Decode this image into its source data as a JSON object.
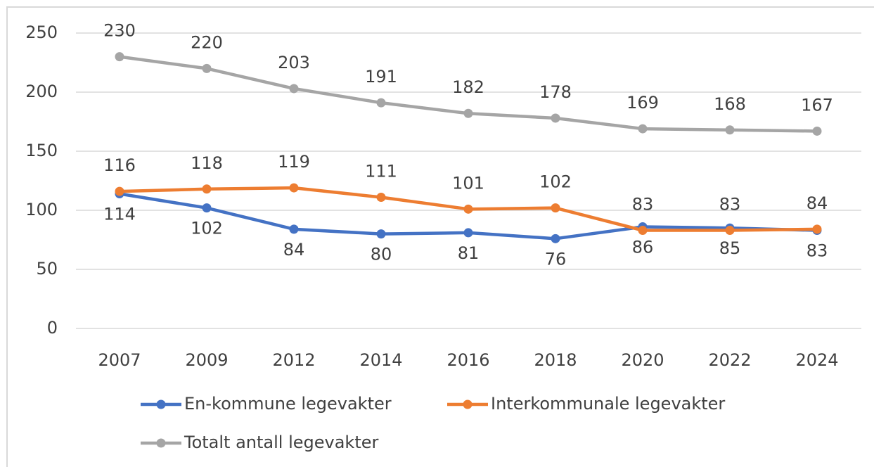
{
  "chart_data": {
    "type": "line",
    "categories": [
      "2007",
      "2009",
      "2012",
      "2014",
      "2016",
      "2018",
      "2020",
      "2022",
      "2024"
    ],
    "series": [
      {
        "name": "En-kommune legevakter",
        "color": "#4472c4",
        "values": [
          114,
          102,
          84,
          80,
          81,
          76,
          86,
          85,
          83
        ],
        "label_position": "below"
      },
      {
        "name": "Interkommunale legevakter",
        "color": "#ed7d31",
        "values": [
          116,
          118,
          119,
          111,
          101,
          102,
          83,
          83,
          84
        ],
        "label_position": "above"
      },
      {
        "name": "Totalt antall legevakter",
        "color": "#a5a5a5",
        "values": [
          230,
          220,
          203,
          191,
          182,
          178,
          169,
          168,
          167
        ],
        "label_position": "above"
      }
    ],
    "ylim": [
      0,
      250
    ],
    "yticks": [
      0,
      50,
      100,
      150,
      200,
      250
    ],
    "grid": true,
    "legend": "bottom"
  }
}
